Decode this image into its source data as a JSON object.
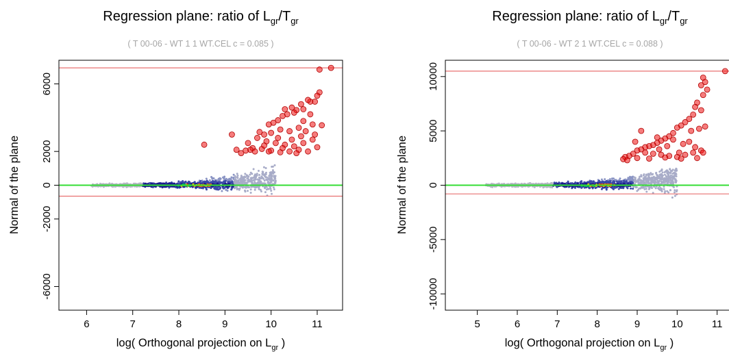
{
  "chart_data": [
    {
      "type": "scatter",
      "title": {
        "main": "Regression plane:  ratio of ",
        "num": "L",
        "num_sub": "gr",
        "slash": "/",
        "den": "T",
        "den_sub": "gr"
      },
      "subtitle": "( T 00-06 - WT 1 1 WT.CEL   c =  0.085 )",
      "xlabel": {
        "main": "log( Orthogonal projection on ",
        "sym": "L",
        "sub": "gr",
        "close": " )"
      },
      "ylabel": "Normal of the plane",
      "xlim": [
        5.4,
        11.55
      ],
      "ylim": [
        -7400,
        7400
      ],
      "xticks": [
        6,
        7,
        8,
        9,
        10,
        11
      ],
      "xtick_labels": [
        "6",
        "7",
        "8",
        "9",
        "10",
        "11"
      ],
      "yticks": [
        6000,
        2000,
        0,
        -2000,
        -6000
      ],
      "ytick_labels": [
        "6000",
        "2000",
        "0",
        "-2000",
        "-6000"
      ],
      "hlines": [
        {
          "y": 0,
          "color": "#33dd33"
        },
        {
          "y": 6950,
          "color": "#e87070"
        },
        {
          "y": -650,
          "color": "#e87070"
        }
      ],
      "outliers": {
        "color": "#ee1111",
        "points": [
          [
            11.3,
            6950
          ],
          [
            11.05,
            6850
          ],
          [
            11.05,
            5500
          ],
          [
            11.0,
            5300
          ],
          [
            10.95,
            4950
          ],
          [
            10.85,
            4950
          ],
          [
            10.8,
            5050
          ],
          [
            10.7,
            4500
          ],
          [
            10.65,
            4800
          ],
          [
            10.55,
            4450
          ],
          [
            10.5,
            4300
          ],
          [
            10.45,
            4600
          ],
          [
            10.35,
            4200
          ],
          [
            10.3,
            4500
          ],
          [
            10.25,
            4100
          ],
          [
            10.15,
            3850
          ],
          [
            10.05,
            3700
          ],
          [
            9.95,
            3600
          ],
          [
            10.7,
            3800
          ],
          [
            10.9,
            3600
          ],
          [
            11.1,
            3550
          ],
          [
            10.6,
            3400
          ],
          [
            10.4,
            3200
          ],
          [
            10.2,
            3300
          ],
          [
            10.0,
            3100
          ],
          [
            9.85,
            3000
          ],
          [
            9.75,
            3150
          ],
          [
            9.7,
            2800
          ],
          [
            9.9,
            2600
          ],
          [
            10.1,
            2500
          ],
          [
            10.3,
            2400
          ],
          [
            10.5,
            2300
          ],
          [
            10.7,
            2500
          ],
          [
            10.9,
            2700
          ],
          [
            9.6,
            2200
          ],
          [
            9.55,
            2100
          ],
          [
            9.65,
            2000
          ],
          [
            9.8,
            2150
          ],
          [
            10.0,
            2050
          ],
          [
            10.2,
            1950
          ],
          [
            10.4,
            2000
          ],
          [
            10.6,
            2100
          ],
          [
            10.8,
            2000
          ],
          [
            11.0,
            2250
          ],
          [
            9.45,
            2050
          ],
          [
            9.35,
            1900
          ],
          [
            9.25,
            2100
          ],
          [
            9.5,
            2500
          ],
          [
            9.85,
            2350
          ],
          [
            10.15,
            2800
          ],
          [
            10.45,
            2700
          ],
          [
            10.65,
            2900
          ],
          [
            10.95,
            3000
          ],
          [
            9.15,
            3000
          ],
          [
            8.55,
            2400
          ],
          [
            9.95,
            2000
          ],
          [
            10.55,
            1900
          ],
          [
            10.25,
            2200
          ],
          [
            10.75,
            3200
          ],
          [
            10.85,
            4200
          ]
        ]
      },
      "cloud": {
        "x_start": 6.1,
        "x_end": 10.1,
        "dense_x": [
          7.2,
          9.2
        ]
      }
    },
    {
      "type": "scatter",
      "title": {
        "main": "Regression plane:  ratio of ",
        "num": "L",
        "num_sub": "gr",
        "slash": "/",
        "den": "T",
        "den_sub": "gr"
      },
      "subtitle": "( T 00-06 - WT 2 1 WT.CEL   c =  0.088 )",
      "xlabel": {
        "main": "log( Orthogonal projection on ",
        "sym": "L",
        "sub": "gr",
        "close": " )"
      },
      "ylabel": "Normal of the plane",
      "xlim": [
        4.2,
        11.4
      ],
      "ylim": [
        -11500,
        11500
      ],
      "xticks": [
        5,
        6,
        7,
        8,
        9,
        10,
        11
      ],
      "xtick_labels": [
        "5",
        "6",
        "7",
        "8",
        "9",
        "10",
        "11"
      ],
      "yticks": [
        10000,
        5000,
        0,
        -5000,
        -10000
      ],
      "ytick_labels": [
        "10000",
        "5000",
        "0",
        "-5000",
        "-10000"
      ],
      "hlines": [
        {
          "y": 0,
          "color": "#33dd33"
        },
        {
          "y": 10500,
          "color": "#e87070"
        },
        {
          "y": -800,
          "color": "#e87070"
        }
      ],
      "outliers": {
        "color": "#ee1111",
        "points": [
          [
            11.2,
            10500
          ],
          [
            10.65,
            9900
          ],
          [
            10.7,
            9500
          ],
          [
            10.6,
            9200
          ],
          [
            10.75,
            8800
          ],
          [
            10.65,
            8300
          ],
          [
            10.5,
            7600
          ],
          [
            10.45,
            7200
          ],
          [
            10.6,
            6900
          ],
          [
            10.4,
            6500
          ],
          [
            10.3,
            6100
          ],
          [
            10.2,
            5800
          ],
          [
            10.1,
            5500
          ],
          [
            10.0,
            5300
          ],
          [
            10.35,
            5000
          ],
          [
            10.55,
            5200
          ],
          [
            10.7,
            5400
          ],
          [
            9.9,
            4800
          ],
          [
            9.8,
            4500
          ],
          [
            9.7,
            4300
          ],
          [
            9.6,
            4100
          ],
          [
            9.5,
            3900
          ],
          [
            9.4,
            3700
          ],
          [
            9.3,
            3600
          ],
          [
            9.2,
            3500
          ],
          [
            9.1,
            3300
          ],
          [
            9.0,
            3200
          ],
          [
            9.2,
            3000
          ],
          [
            9.4,
            2900
          ],
          [
            9.6,
            2800
          ],
          [
            9.8,
            2700
          ],
          [
            10.0,
            2600
          ],
          [
            10.2,
            2800
          ],
          [
            10.4,
            3000
          ],
          [
            10.6,
            3200
          ],
          [
            8.9,
            2900
          ],
          [
            8.8,
            2700
          ],
          [
            8.7,
            2600
          ],
          [
            9.0,
            2500
          ],
          [
            9.3,
            2450
          ],
          [
            9.7,
            2550
          ],
          [
            10.1,
            2450
          ],
          [
            10.5,
            2500
          ],
          [
            9.1,
            5000
          ],
          [
            9.5,
            4400
          ],
          [
            9.9,
            4200
          ],
          [
            10.3,
            4000
          ],
          [
            8.65,
            2400
          ],
          [
            8.95,
            4000
          ],
          [
            9.75,
            3600
          ],
          [
            10.15,
            3800
          ],
          [
            10.45,
            3500
          ],
          [
            8.75,
            2300
          ],
          [
            9.55,
            3300
          ],
          [
            10.05,
            3000
          ],
          [
            10.65,
            3000
          ]
        ]
      },
      "cloud": {
        "x_start": 5.2,
        "x_end": 10.0,
        "dense_x": [
          6.9,
          8.9
        ]
      }
    }
  ]
}
